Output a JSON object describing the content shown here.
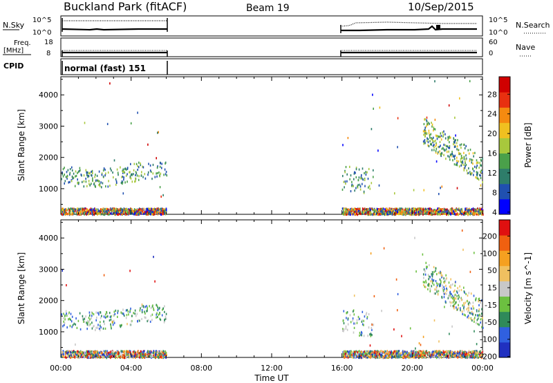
{
  "header": {
    "title": "Buckland Park (fitACF)",
    "beam": "Beam 19",
    "date": "10/Sep/2015"
  },
  "strips": {
    "nsky_label": "N.Sky",
    "nsearch_label": "N.Search",
    "nsky_ticks": [
      "10^5",
      "10^0"
    ],
    "nsearch_ticks": [
      "10^5",
      "10^0"
    ],
    "freq_label": "Freq.",
    "freq_unit": "[MHz]",
    "freq_ticks": [
      "18",
      "8"
    ],
    "nave_label": "Nave",
    "nave_ticks": [
      "60",
      "0"
    ],
    "cpid_label": "CPID",
    "cpid_text": "normal (fast) 151"
  },
  "chart_data": [
    {
      "type": "heatmap",
      "name": "power",
      "ylabel": "Slant Range [km]",
      "yticks": [
        1000,
        2000,
        3000,
        4000
      ],
      "ylim": [
        180,
        4580
      ],
      "xlim_hours": [
        0,
        24
      ],
      "xticks": [
        "00:00",
        "04:00",
        "08:00",
        "12:00",
        "16:00",
        "20:00",
        "00:00"
      ],
      "xlabel": "Time UT",
      "colorbar": {
        "label": "Power [dB]",
        "ticks": [
          "28",
          "24",
          "20",
          "16",
          "12",
          "8",
          "4"
        ],
        "colors": [
          "#0000ff",
          "#2050b0",
          "#2e7d6a",
          "#4aa04a",
          "#a8c83c",
          "#f0c020",
          "#f58a10",
          "#e83010",
          "#d00000"
        ]
      },
      "data_gaps_hours": [
        [
          6,
          16
        ]
      ],
      "features": [
        {
          "desc": "near-range ground clutter band",
          "range_km": [
            200,
            400
          ],
          "hours": [
            [
              0,
              6
            ],
            [
              16,
              24
            ]
          ]
        },
        {
          "desc": "scatter band",
          "range_km": [
            1200,
            1800
          ],
          "hours": [
            [
              0,
              6
            ]
          ]
        },
        {
          "desc": "scatter patch",
          "range_km": [
            1000,
            1800
          ],
          "hours": [
            [
              16,
              17.8
            ]
          ]
        },
        {
          "desc": "descending echo trace",
          "start": {
            "hour": 20.6,
            "range_km": 2700
          },
          "end": {
            "hour": 24,
            "range_km": 1400
          }
        }
      ]
    },
    {
      "type": "heatmap",
      "name": "velocity",
      "ylabel": "Slant Range [km]",
      "yticks": [
        1000,
        2000,
        3000,
        4000
      ],
      "ylim": [
        180,
        4580
      ],
      "xlim_hours": [
        0,
        24
      ],
      "xticks": [
        "00:00",
        "04:00",
        "08:00",
        "12:00",
        "16:00",
        "20:00",
        "00:00"
      ],
      "xlabel": "Time UT",
      "colorbar": {
        "label": "Velocity [m s^-1]",
        "ticks": [
          "200",
          "100",
          "50",
          "15",
          "-15",
          "-50",
          "-100",
          "-200"
        ],
        "colors": [
          "#2030c0",
          "#3060e0",
          "#2f8a5a",
          "#6cc040",
          "#c8c8c8",
          "#f0c060",
          "#f5a020",
          "#f06010",
          "#e01010"
        ]
      },
      "data_gaps_hours": [
        [
          6,
          16
        ]
      ],
      "features": [
        {
          "desc": "near-range ground clutter band",
          "range_km": [
            200,
            420
          ],
          "hours": [
            [
              0,
              6
            ],
            [
              16,
              24
            ]
          ]
        },
        {
          "desc": "scatter band",
          "range_km": [
            1200,
            1800
          ],
          "hours": [
            [
              0,
              6
            ]
          ]
        },
        {
          "desc": "scatter patch",
          "range_km": [
            1000,
            1800
          ],
          "hours": [
            [
              16,
              17.8
            ]
          ]
        },
        {
          "desc": "descending echo trace",
          "start": {
            "hour": 20.6,
            "range_km": 2700
          },
          "end": {
            "hour": 24,
            "range_km": 1400
          }
        }
      ]
    }
  ]
}
